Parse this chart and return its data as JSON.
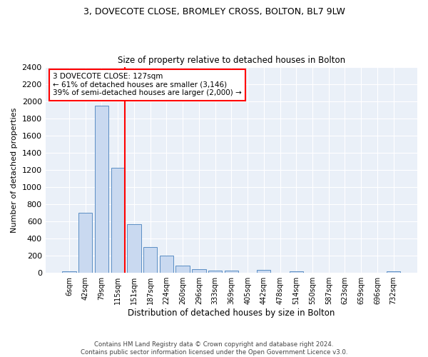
{
  "title1": "3, DOVECOTE CLOSE, BROMLEY CROSS, BOLTON, BL7 9LW",
  "title2": "Size of property relative to detached houses in Bolton",
  "xlabel": "Distribution of detached houses by size in Bolton",
  "ylabel": "Number of detached properties",
  "bar_labels": [
    "6sqm",
    "42sqm",
    "79sqm",
    "115sqm",
    "151sqm",
    "187sqm",
    "224sqm",
    "260sqm",
    "296sqm",
    "333sqm",
    "369sqm",
    "405sqm",
    "442sqm",
    "478sqm",
    "514sqm",
    "550sqm",
    "587sqm",
    "623sqm",
    "659sqm",
    "696sqm",
    "732sqm"
  ],
  "bar_values": [
    20,
    700,
    1950,
    1220,
    570,
    305,
    200,
    85,
    40,
    30,
    30,
    0,
    35,
    0,
    20,
    0,
    0,
    0,
    0,
    0,
    20
  ],
  "bar_color": "#c9d9f0",
  "bar_edge_color": "#5b8ec4",
  "vline_color": "red",
  "vline_x": 3.43,
  "annotation_text": "3 DOVECOTE CLOSE: 127sqm\n← 61% of detached houses are smaller (3,146)\n39% of semi-detached houses are larger (2,000) →",
  "annotation_box_color": "white",
  "annotation_box_edge_color": "red",
  "ylim": [
    0,
    2400
  ],
  "yticks": [
    0,
    200,
    400,
    600,
    800,
    1000,
    1200,
    1400,
    1600,
    1800,
    2000,
    2200,
    2400
  ],
  "bg_color": "#eaf0f8",
  "footer": "Contains HM Land Registry data © Crown copyright and database right 2024.\nContains public sector information licensed under the Open Government Licence v3.0."
}
